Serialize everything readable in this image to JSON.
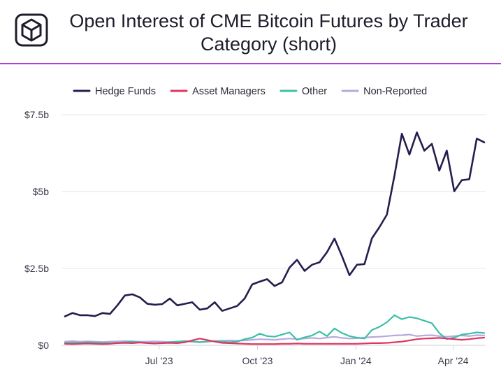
{
  "header": {
    "title": "Open Interest of CME Bitcoin Futures by Trader Category (short)",
    "logo_icon": "cube-logo-icon"
  },
  "chart_data": {
    "type": "line",
    "title": "Open Interest of CME Bitcoin Futures by Trader Category (short)",
    "xlabel": "",
    "ylabel": "",
    "x_start": "2023-04-04",
    "x_step_days": 7,
    "x_ticks": [
      {
        "date": "2023-07-01",
        "label": "Jul '23"
      },
      {
        "date": "2023-10-01",
        "label": "Oct '23"
      },
      {
        "date": "2024-01-01",
        "label": "Jan '24"
      },
      {
        "date": "2024-04-01",
        "label": "Apr '24"
      }
    ],
    "y_ticks": [
      {
        "value": 0,
        "label": "$0"
      },
      {
        "value": 2.5,
        "label": "$2.5b"
      },
      {
        "value": 5,
        "label": "$5b"
      },
      {
        "value": 7.5,
        "label": "$7.5b"
      }
    ],
    "ylim": [
      0,
      7.5
    ],
    "grid": true,
    "legend_position": "top",
    "series": [
      {
        "name": "Hedge Funds",
        "color": "#241e4e",
        "values": [
          0.94,
          1.05,
          0.98,
          0.98,
          0.95,
          1.05,
          1.02,
          1.3,
          1.62,
          1.66,
          1.56,
          1.35,
          1.32,
          1.34,
          1.52,
          1.3,
          1.35,
          1.4,
          1.16,
          1.2,
          1.4,
          1.12,
          1.2,
          1.28,
          1.52,
          1.98,
          2.07,
          2.15,
          1.93,
          2.05,
          2.53,
          2.78,
          2.42,
          2.62,
          2.7,
          3.03,
          3.47,
          2.9,
          2.28,
          2.62,
          2.64,
          3.48,
          3.84,
          4.25,
          5.5,
          6.88,
          6.2,
          6.92,
          6.33,
          6.55,
          5.68,
          6.33,
          5.01,
          5.37,
          5.4,
          6.72,
          6.6
        ]
      },
      {
        "name": "Asset Managers",
        "color": "#e0355f",
        "values": [
          0.05,
          0.04,
          0.05,
          0.06,
          0.05,
          0.04,
          0.05,
          0.07,
          0.08,
          0.07,
          0.09,
          0.07,
          0.06,
          0.07,
          0.08,
          0.07,
          0.1,
          0.16,
          0.22,
          0.17,
          0.12,
          0.08,
          0.07,
          0.06,
          0.05,
          0.04,
          0.04,
          0.04,
          0.04,
          0.05,
          0.05,
          0.06,
          0.05,
          0.05,
          0.05,
          0.05,
          0.05,
          0.05,
          0.05,
          0.05,
          0.06,
          0.07,
          0.07,
          0.08,
          0.1,
          0.12,
          0.16,
          0.2,
          0.22,
          0.23,
          0.24,
          0.22,
          0.2,
          0.18,
          0.2,
          0.23,
          0.25
        ]
      },
      {
        "name": "Other",
        "color": "#3dbfa8",
        "values": [
          0.08,
          0.09,
          0.08,
          0.1,
          0.09,
          0.08,
          0.07,
          0.08,
          0.1,
          0.12,
          0.1,
          0.08,
          0.07,
          0.08,
          0.1,
          0.12,
          0.14,
          0.12,
          0.1,
          0.12,
          0.14,
          0.12,
          0.1,
          0.12,
          0.2,
          0.25,
          0.38,
          0.3,
          0.28,
          0.35,
          0.42,
          0.18,
          0.26,
          0.32,
          0.45,
          0.3,
          0.55,
          0.4,
          0.3,
          0.25,
          0.22,
          0.5,
          0.6,
          0.75,
          0.98,
          0.85,
          0.92,
          0.88,
          0.8,
          0.72,
          0.4,
          0.2,
          0.25,
          0.35,
          0.38,
          0.42,
          0.4
        ]
      },
      {
        "name": "Non-Reported",
        "color": "#b7a9dd",
        "values": [
          0.12,
          0.14,
          0.12,
          0.13,
          0.12,
          0.11,
          0.12,
          0.13,
          0.14,
          0.13,
          0.12,
          0.12,
          0.13,
          0.12,
          0.11,
          0.12,
          0.13,
          0.12,
          0.11,
          0.12,
          0.14,
          0.15,
          0.16,
          0.15,
          0.16,
          0.18,
          0.2,
          0.19,
          0.18,
          0.2,
          0.22,
          0.2,
          0.22,
          0.24,
          0.22,
          0.25,
          0.28,
          0.24,
          0.22,
          0.23,
          0.25,
          0.27,
          0.28,
          0.3,
          0.32,
          0.33,
          0.35,
          0.3,
          0.32,
          0.33,
          0.3,
          0.28,
          0.3,
          0.32,
          0.3,
          0.33,
          0.32
        ]
      }
    ]
  }
}
